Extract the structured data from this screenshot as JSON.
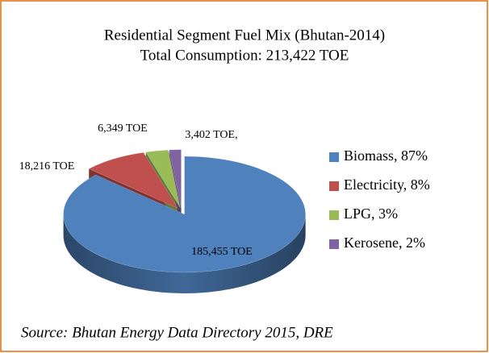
{
  "chart_data": {
    "type": "pie",
    "title": "Residential Segment Fuel Mix (Bhutan-2014)",
    "subtitle": "Total Consumption: 213,422 TOE",
    "categories": [
      "Biomass, 87%",
      "Electricity, 8%",
      "LPG, 3%",
      "Kerosene, 2%"
    ],
    "values": [
      185455,
      18216,
      6349,
      3402
    ],
    "value_labels": [
      "185,455 TOE",
      "18,216 TOE",
      "6,349 TOE",
      "3,402 TOE,"
    ],
    "colors": [
      "#4f81bd",
      "#c0504d",
      "#9bbb59",
      "#8064a2"
    ],
    "legend": "right",
    "source": "Source: Bhutan Energy Data Directory 2015, DRE"
  }
}
